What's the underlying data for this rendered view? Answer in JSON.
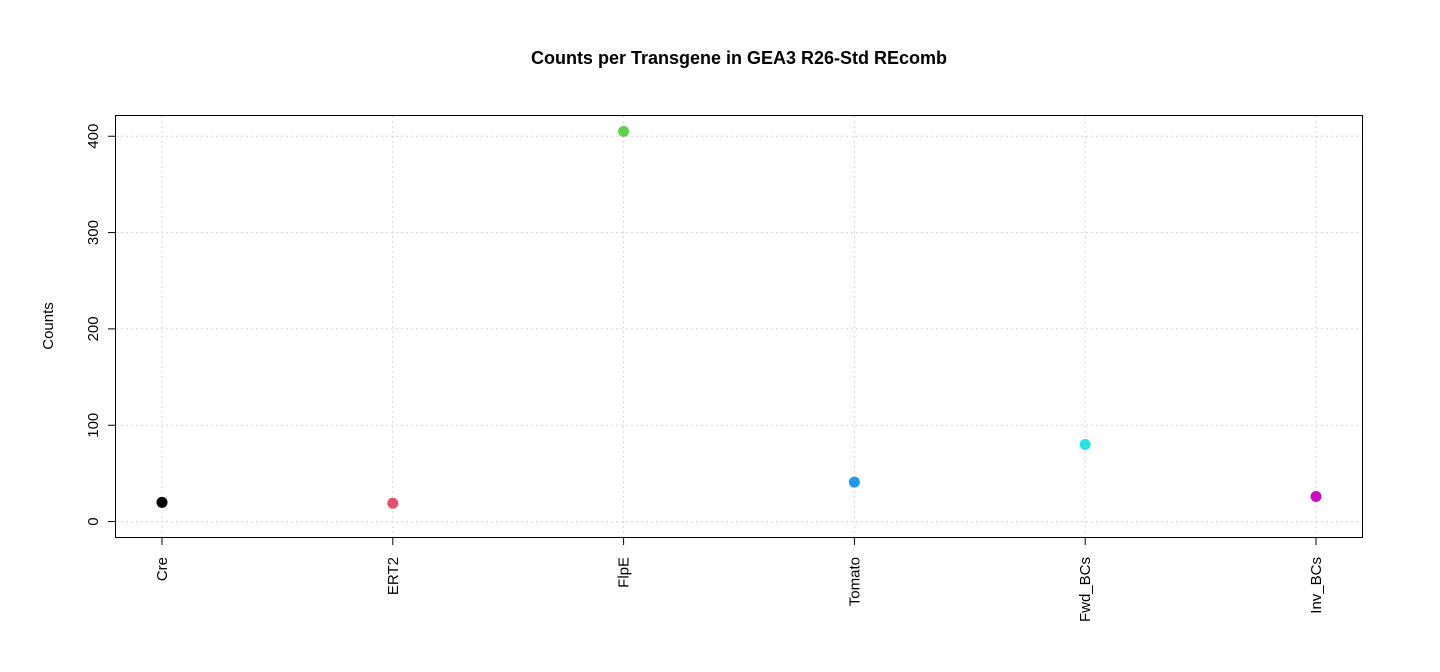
{
  "chart_data": {
    "type": "scatter",
    "title": "Counts per Transgene in GEA3 R26-Std REcomb",
    "xlabel": "",
    "ylabel": "Counts",
    "categories": [
      "Cre",
      "ERT2",
      "FlpE",
      "Tomato",
      "Fwd_BCs",
      "Inv_BCs"
    ],
    "values": [
      20,
      19,
      405,
      41,
      80,
      26
    ],
    "colors": [
      "#000000",
      "#DF536B",
      "#61D04F",
      "#2297E6",
      "#28E2E5",
      "#CD0BBC"
    ],
    "yticks": [
      0,
      100,
      200,
      300,
      400
    ],
    "ylim": [
      -16,
      421
    ],
    "grid": true,
    "legend": "none"
  }
}
